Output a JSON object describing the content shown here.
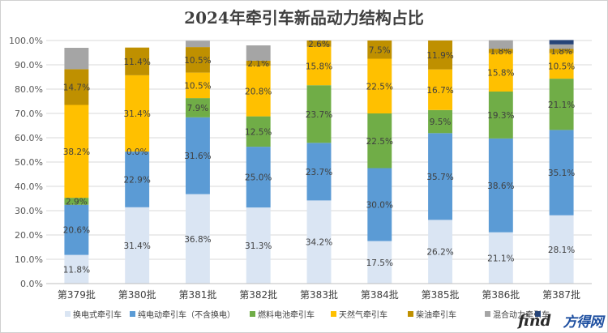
{
  "chart_data": {
    "type": "bar",
    "stacked": true,
    "title": "2024年牵引车新品动力结构占比",
    "xlabel": "",
    "ylabel": "",
    "ylim": [
      0,
      1
    ],
    "y_tick_labels": [
      "0.0%",
      "10.0%",
      "20.0%",
      "30.0%",
      "40.0%",
      "50.0%",
      "60.0%",
      "70.0%",
      "80.0%",
      "90.0%",
      "100.0%"
    ],
    "grid": true,
    "legend_position": "bottom",
    "categories": [
      "第379批",
      "第380批",
      "第381批",
      "第382批",
      "第383批",
      "第384批",
      "第385批",
      "第386批",
      "第387批"
    ],
    "series": [
      {
        "name": "换电式牵引车",
        "color": "#dae5f3",
        "values": [
          0.118,
          0.314,
          0.368,
          0.313,
          0.342,
          0.175,
          0.262,
          0.211,
          0.281
        ],
        "labels": [
          "11.8%",
          "31.4%",
          "36.8%",
          "31.3%",
          "34.2%",
          "17.5%",
          "26.2%",
          "21.1%",
          "28.1%"
        ]
      },
      {
        "name": "纯电动牵引车（不含换电）",
        "color": "#5b9bd5",
        "values": [
          0.206,
          0.229,
          0.316,
          0.25,
          0.237,
          0.3,
          0.357,
          0.386,
          0.351
        ],
        "labels": [
          "20.6%",
          "22.9%",
          "31.6%",
          "25.0%",
          "23.7%",
          "30.0%",
          "35.7%",
          "38.6%",
          "35.1%"
        ]
      },
      {
        "name": "燃料电池牵引车",
        "color": "#70ad47",
        "values": [
          0.029,
          0.0,
          0.079,
          0.125,
          0.237,
          0.225,
          0.095,
          0.193,
          0.211
        ],
        "labels": [
          "2.9%",
          "",
          "7.9%",
          "12.5%",
          "23.7%",
          "22.5%",
          "9.5%",
          "19.3%",
          "21.1%"
        ]
      },
      {
        "name": "天然气牵引车",
        "color": "#ffc000",
        "values": [
          0.382,
          0.314,
          0.105,
          0.208,
          0.158,
          0.225,
          0.167,
          0.158,
          0.105
        ],
        "labels": [
          "38.2%",
          "31.4%",
          "10.5%",
          "20.8%",
          "15.8%",
          "22.5%",
          "16.7%",
          "15.8%",
          "10.5%"
        ]
      },
      {
        "name": "柴油牵引车",
        "color": "#bf9000",
        "values": [
          0.147,
          0.114,
          0.105,
          0.021,
          0.026,
          0.075,
          0.119,
          0.018,
          0.018
        ],
        "labels": [
          "14.7%",
          "11.4%",
          "10.5%",
          "2.1%",
          "2.6%",
          "7.5%",
          "11.9%",
          "1.8%",
          "1.8%"
        ]
      },
      {
        "name": "混合动力牵引车",
        "color": "#a5a5a5",
        "values": [
          0.088,
          0.0,
          0.026,
          0.063,
          0.0,
          0.0,
          0.0,
          0.035,
          0.018
        ],
        "labels": [
          "",
          "",
          "",
          "",
          "",
          "",
          "",
          "",
          ""
        ]
      },
      {
        "name": "",
        "color": "#264478",
        "values": [
          0,
          0,
          0,
          0,
          0,
          0,
          0,
          0,
          0.018
        ],
        "labels": [
          "",
          "",
          "",
          "",
          "",
          "",
          "",
          "",
          ""
        ]
      }
    ],
    "extra_labels": [
      {
        "category_index": 1,
        "text": "0.0%",
        "at_value": 0.543
      }
    ]
  },
  "watermark": {
    "text": "方得网"
  }
}
